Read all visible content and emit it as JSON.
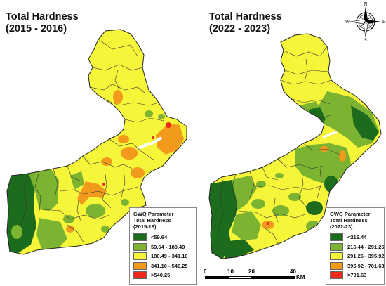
{
  "left_panel": {
    "title_line1": "Total Hardness",
    "title_line2": "(2015 - 2016)",
    "legend": {
      "title_line1": "GWQ Parameter",
      "title_line2": "Total Hardness",
      "year": "(2015-16)",
      "classes": [
        {
          "label": "<59.64",
          "color": "#1d6b1d"
        },
        {
          "label": "59.64 - 180.49",
          "color": "#7cb331"
        },
        {
          "label": "180.49 - 341.10",
          "color": "#f5f53a"
        },
        {
          "label": "341.10 - 540.25",
          "color": "#f29a1c"
        },
        {
          "label": ">540.25",
          "color": "#ee2a1a"
        }
      ]
    }
  },
  "right_panel": {
    "title_line1": "Total Hardness",
    "title_line2": "(2022 - 2023)",
    "legend": {
      "title_line1": "GWQ Parameter",
      "title_line2": "Total Hardness",
      "year": "(2022-23)",
      "classes": [
        {
          "label": "<216.44",
          "color": "#1d6b1d"
        },
        {
          "label": "216.44 - 291.26",
          "color": "#7cb331"
        },
        {
          "label": "291.26 - 395.92",
          "color": "#f5f53a"
        },
        {
          "label": "395.92 - 701.63",
          "color": "#f29a1c"
        },
        {
          "label": ">701.63",
          "color": "#ee2a1a"
        }
      ]
    }
  },
  "scale_bar": {
    "ticks": [
      "0",
      "10",
      "20",
      "40"
    ],
    "unit": "KM"
  },
  "compass": {
    "n": "N",
    "s": "S",
    "e": "E",
    "w": "W"
  }
}
